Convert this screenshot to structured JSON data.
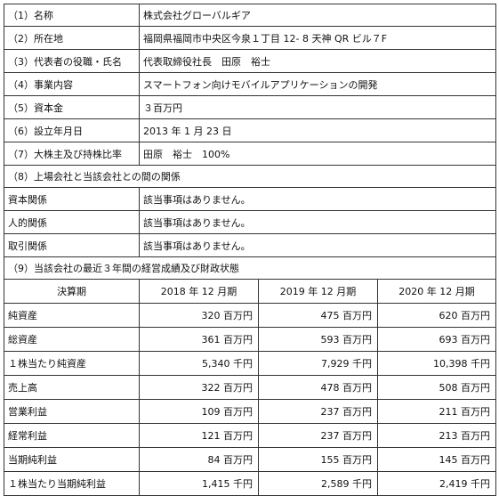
{
  "company": {
    "rows": [
      {
        "label": "（1）名称",
        "value": "株式会社グローバルギア"
      },
      {
        "label": "（2）所在地",
        "value": "福岡県福岡市中央区今泉１丁目 12- 8 天神 QR ビル７F"
      },
      {
        "label": "（3）代表者の役職・氏名",
        "value": "代表取締役社長　田原　裕士"
      },
      {
        "label": "（4）事業内容",
        "value": "スマートフォン向けモバイルアプリケーションの開発"
      },
      {
        "label": "（5）資本金",
        "value": "３百万円"
      },
      {
        "label": "（6）設立年月日",
        "value": "2013 年 1 月 23 日"
      },
      {
        "label": "（7）大株主及び持株比率",
        "value": "田原　裕士　100%"
      }
    ],
    "relation_heading": "（8）上場会社と当該会社との間の関係",
    "relations": [
      {
        "label": "資本関係",
        "value": "該当事項はありません。"
      },
      {
        "label": "人的関係",
        "value": "該当事項はありません。"
      },
      {
        "label": "取引関係",
        "value": "該当事項はありません。"
      }
    ],
    "financial_heading": "（9）当該会社の最近３年間の経営成績及び財政状態"
  },
  "financials": {
    "header": [
      "決算期",
      "2018 年 12 月期",
      "2019 年 12 月期",
      "2020 年 12 月期"
    ],
    "rows": [
      {
        "label": "純資産",
        "values": [
          "320 百万円",
          "475 百万円",
          "620 百万円"
        ]
      },
      {
        "label": "総資産",
        "values": [
          "361 百万円",
          "593 百万円",
          "693 百万円"
        ]
      },
      {
        "label": "１株当たり純資産",
        "values": [
          "5,340 千円",
          "7,929 千円",
          "10,398 千円"
        ]
      },
      {
        "label": "売上高",
        "values": [
          "322 百万円",
          "478 百万円",
          "508 百万円"
        ]
      },
      {
        "label": "営業利益",
        "values": [
          "109 百万円",
          "237 百万円",
          "211 百万円"
        ]
      },
      {
        "label": "経常利益",
        "values": [
          "121 百万円",
          "237 百万円",
          "213 百万円"
        ]
      },
      {
        "label": "当期純利益",
        "values": [
          "84 百万円",
          "155 百万円",
          "145 百万円"
        ]
      },
      {
        "label": "１株当たり当期純利益",
        "values": [
          "1,415 千円",
          "2,589 千円",
          "2,419 千円"
        ]
      }
    ]
  }
}
